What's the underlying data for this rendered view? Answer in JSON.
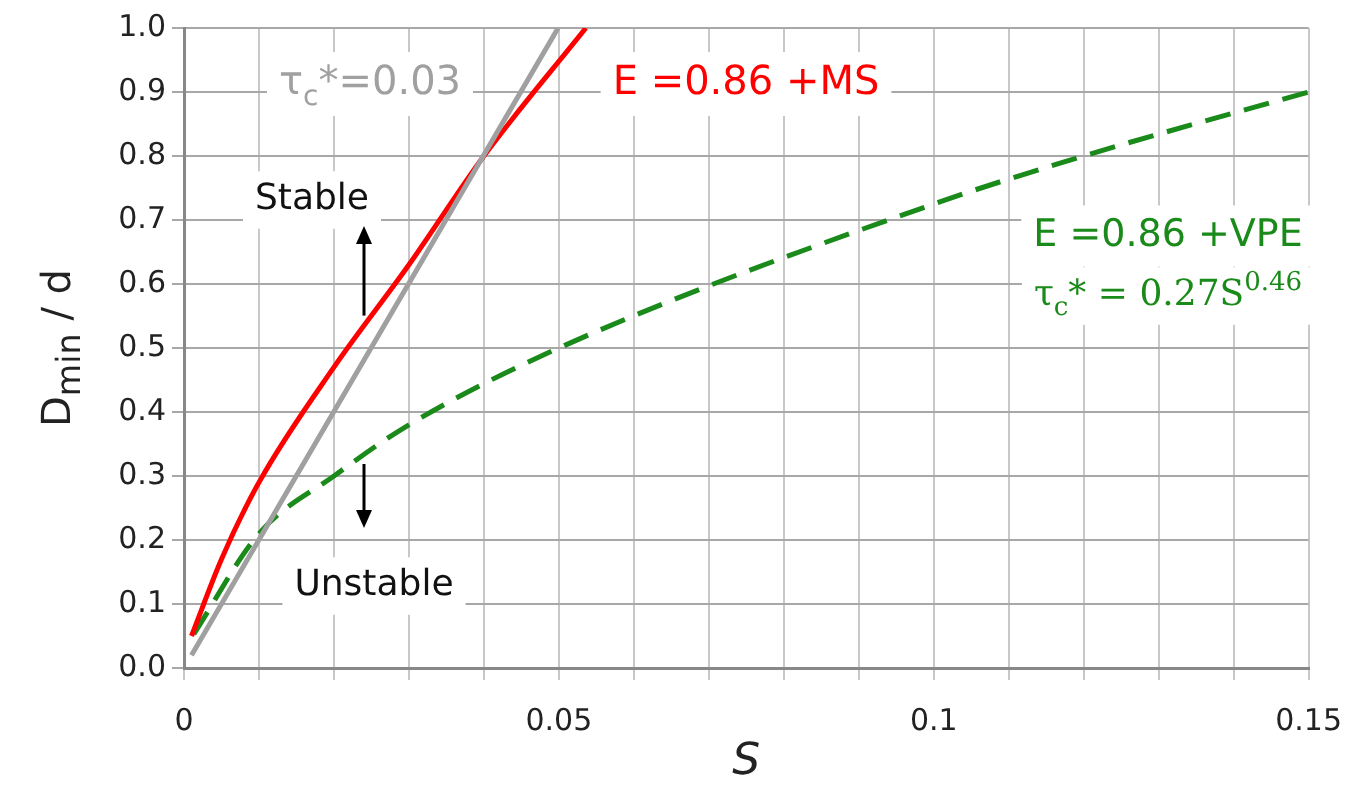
{
  "chart_data": {
    "type": "line",
    "xlabel": "S",
    "ylabel": "D$_{min}$ / d",
    "xlim": [
      0,
      0.15
    ],
    "xticks": [
      0,
      {
        "value": 0.01,
        "label": null
      },
      {
        "value": 0.02,
        "label": null
      },
      {
        "value": 0.03,
        "label": null
      },
      {
        "value": 0.04,
        "label": null
      },
      0.05,
      {
        "value": 0.06,
        "label": null
      },
      {
        "value": 0.07,
        "label": null
      },
      {
        "value": 0.08,
        "label": null
      },
      {
        "value": 0.09,
        "label": null
      },
      0.1,
      {
        "value": 0.11,
        "label": null
      },
      {
        "value": 0.12,
        "label": null
      },
      {
        "value": 0.13,
        "label": null
      },
      {
        "value": 0.14,
        "label": null
      },
      0.15
    ],
    "ylim": [
      0,
      1
    ],
    "yticks": [
      {
        "value": 0,
        "label": "0.0"
      },
      0.1,
      0.2,
      0.3,
      0.4,
      0.5,
      0.6,
      0.7,
      0.8,
      0.9,
      {
        "value": 1,
        "label": "1.0"
      }
    ],
    "grid": true,
    "legend": false,
    "marker": "none",
    "series": [
      {
        "name": "τ$_{c}$*=0.03",
        "color": "#a0a0a0",
        "line_style": "solid",
        "x": [
          0.001,
          0.0499
        ],
        "values": [
          0.02,
          1.0
        ]
      },
      {
        "name": "E =0.86 +MS",
        "color": "#ff0000",
        "line_style": "solid",
        "x": [
          0.001,
          0.005,
          0.01,
          0.02,
          0.03,
          0.04,
          0.0536
        ],
        "values": [
          0.05,
          0.17,
          0.29,
          0.47,
          0.63,
          0.8,
          1.0
        ]
      },
      {
        "name": "E =0.86 +VPE",
        "color": "#1a8a1a",
        "line_style": "dashed",
        "x": [
          0.0013,
          0.01,
          0.02,
          0.03,
          0.05,
          0.1,
          0.12,
          0.15
        ],
        "values": [
          0.053,
          0.21,
          0.3,
          0.38,
          0.5,
          0.725,
          0.8,
          0.9
        ]
      }
    ],
    "annotations": [
      {
        "text": "Stable",
        "x": 0.024,
        "y": 0.55
      },
      {
        "text": "Unstable",
        "x": 0.024,
        "y": 0.32
      },
      "τ$_{c}$* = 0.27S$^{0.46}$"
    ]
  }
}
